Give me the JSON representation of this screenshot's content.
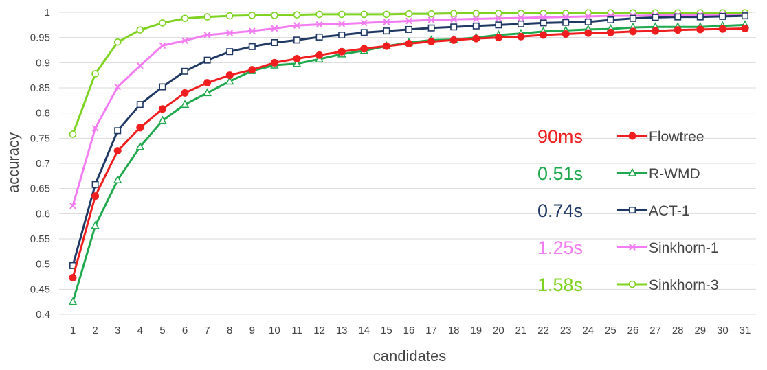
{
  "chart_data": {
    "type": "line",
    "title": "",
    "xlabel": "candidates",
    "ylabel": "accuracy",
    "ylim": [
      0.4,
      1.0
    ],
    "y_ticks": [
      "0.4",
      "0.45",
      "0.5",
      "0.55",
      "0.6",
      "0.65",
      "0.7",
      "0.75",
      "0.8",
      "0.85",
      "0.9",
      "0.95",
      "1"
    ],
    "grid": "horizontal",
    "legend_position": "bottom-right",
    "x": [
      1,
      2,
      3,
      4,
      5,
      6,
      7,
      8,
      9,
      10,
      11,
      12,
      13,
      14,
      15,
      16,
      17,
      18,
      19,
      20,
      21,
      22,
      23,
      24,
      25,
      26,
      27,
      28,
      29,
      30,
      31
    ],
    "series": [
      {
        "name": "Flowtree",
        "timing": "90ms",
        "color": "#f01e1e",
        "marker": "filled-circle",
        "values": [
          0.473,
          0.635,
          0.725,
          0.771,
          0.808,
          0.84,
          0.86,
          0.875,
          0.886,
          0.9,
          0.908,
          0.915,
          0.922,
          0.928,
          0.933,
          0.938,
          0.942,
          0.945,
          0.948,
          0.95,
          0.952,
          0.955,
          0.957,
          0.959,
          0.96,
          0.962,
          0.963,
          0.965,
          0.966,
          0.967,
          0.968
        ]
      },
      {
        "name": "R-WMD",
        "timing": "0.51s",
        "color": "#1fa84c",
        "marker": "triangle",
        "values": [
          0.425,
          0.576,
          0.667,
          0.733,
          0.785,
          0.817,
          0.84,
          0.863,
          0.884,
          0.895,
          0.898,
          0.907,
          0.917,
          0.924,
          0.933,
          0.94,
          0.945,
          0.946,
          0.95,
          0.955,
          0.958,
          0.962,
          0.964,
          0.966,
          0.967,
          0.97,
          0.971,
          0.971,
          0.971,
          0.973,
          0.975
        ]
      },
      {
        "name": "ACT-1",
        "timing": "0.74s",
        "color": "#1f3864",
        "marker": "hollow-square",
        "values": [
          0.497,
          0.658,
          0.765,
          0.817,
          0.852,
          0.883,
          0.905,
          0.922,
          0.932,
          0.94,
          0.945,
          0.951,
          0.955,
          0.96,
          0.963,
          0.966,
          0.969,
          0.971,
          0.973,
          0.975,
          0.977,
          0.979,
          0.98,
          0.981,
          0.985,
          0.988,
          0.99,
          0.991,
          0.991,
          0.992,
          0.993
        ]
      },
      {
        "name": "Sinkhorn-1",
        "timing": "1.25s",
        "color": "#f47cf2",
        "marker": "x",
        "values": [
          0.616,
          0.77,
          0.852,
          0.894,
          0.934,
          0.944,
          0.955,
          0.959,
          0.963,
          0.968,
          0.974,
          0.976,
          0.977,
          0.979,
          0.981,
          0.983,
          0.985,
          0.986,
          0.987,
          0.988,
          0.989,
          0.99,
          0.991,
          0.992,
          0.993,
          0.993,
          0.994,
          0.994,
          0.995,
          0.995,
          0.995
        ]
      },
      {
        "name": "Sinkhorn-3",
        "timing": "1.58s",
        "color": "#7ed321",
        "marker": "hollow-circle",
        "values": [
          0.758,
          0.878,
          0.941,
          0.965,
          0.979,
          0.988,
          0.991,
          0.993,
          0.994,
          0.994,
          0.995,
          0.996,
          0.996,
          0.996,
          0.996,
          0.997,
          0.997,
          0.998,
          0.998,
          0.998,
          0.998,
          0.998,
          0.998,
          0.999,
          0.999,
          0.999,
          0.999,
          0.999,
          0.999,
          0.999,
          0.999
        ]
      }
    ]
  }
}
